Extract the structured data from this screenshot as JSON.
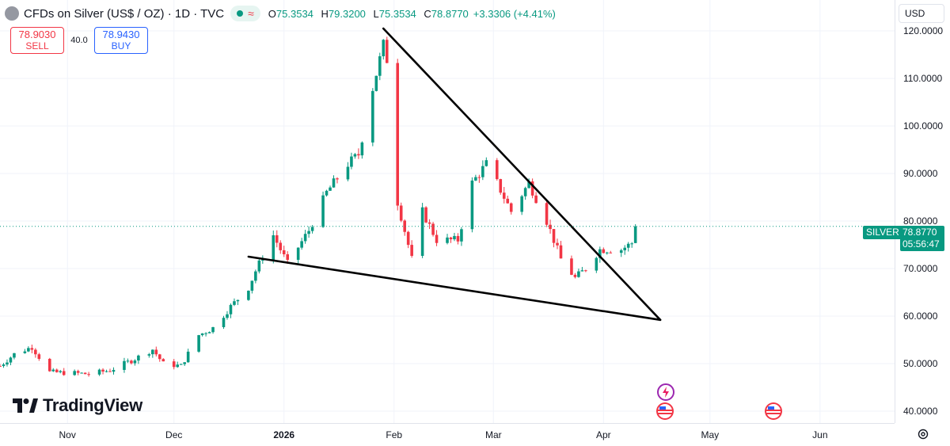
{
  "header": {
    "title": "CFDs on Silver (US$ / OZ) · 1D · TVC",
    "open_label": "O",
    "open": "75.3534",
    "high_label": "H",
    "high": "79.3200",
    "low_label": "L",
    "low": "75.3534",
    "close_label": "C",
    "close": "78.8770",
    "change": "+3.3306 (+4.41%)"
  },
  "trade": {
    "sell_price": "78.9030",
    "sell_label": "SELL",
    "spread": "40.0",
    "buy_price": "78.9430",
    "buy_label": "BUY"
  },
  "currency": "USD",
  "brand": "TradingView",
  "price_label": {
    "symbol": "SILVER",
    "price": "78.8770",
    "countdown": "05:56:47"
  },
  "colors": {
    "up": "#089981",
    "down": "#f23645",
    "grid": "#f0f3fa",
    "trendline": "#000000"
  },
  "icons": [
    "status-dot-icon",
    "wave-icon",
    "tradingview-logo-icon",
    "lightning-event-icon",
    "us-flag-event-icon",
    "settings-icon"
  ],
  "chart_data": {
    "type": "candlestick",
    "title": "CFDs on Silver (US$ / OZ)",
    "y_ticks": [
      "120.0000",
      "110.0000",
      "100.0000",
      "90.0000",
      "80.0000",
      "70.0000",
      "60.0000",
      "50.0000",
      "40.0000"
    ],
    "x_ticks": [
      {
        "label": "Nov",
        "date": "2025-11-01",
        "bold": false
      },
      {
        "label": "Dec",
        "date": "2025-12-01",
        "bold": false
      },
      {
        "label": "2026",
        "date": "2026-01-01",
        "bold": true
      },
      {
        "label": "Feb",
        "date": "2026-02-01",
        "bold": false
      },
      {
        "label": "Mar",
        "date": "2026-03-01",
        "bold": false
      },
      {
        "label": "Apr",
        "date": "2026-04-01",
        "bold": false
      },
      {
        "label": "May",
        "date": "2026-05-01",
        "bold": false
      },
      {
        "label": "Jun",
        "date": "2026-06-01",
        "bold": false
      }
    ],
    "ylim": [
      37.5,
      126.5
    ],
    "xlim": [
      "2025-10-13",
      "2026-06-22"
    ],
    "last_price": 78.877,
    "anchors": [
      [
        "2025-10-13",
        49.5
      ],
      [
        "2025-10-17",
        52.0
      ],
      [
        "2025-10-22",
        53.5
      ],
      [
        "2025-10-27",
        48.2
      ],
      [
        "2025-11-03",
        48.0
      ],
      [
        "2025-11-07",
        47.8
      ],
      [
        "2025-11-13",
        48.6
      ],
      [
        "2025-11-20",
        51.0
      ],
      [
        "2025-11-25",
        53.0
      ],
      [
        "2025-11-28",
        50.0
      ],
      [
        "2025-12-03",
        49.5
      ],
      [
        "2025-12-08",
        56.0
      ],
      [
        "2025-12-12",
        57.5
      ],
      [
        "2025-12-17",
        62.0
      ],
      [
        "2025-12-22",
        66.0
      ],
      [
        "2025-12-24",
        69.5
      ],
      [
        "2025-12-29",
        77.0
      ],
      [
        "2026-01-02",
        71.0
      ],
      [
        "2026-01-08",
        78.0
      ],
      [
        "2026-01-13",
        86.0
      ],
      [
        "2026-01-19",
        92.0
      ],
      [
        "2026-01-22",
        94.0
      ],
      [
        "2026-01-26",
        108.0
      ],
      [
        "2026-01-29",
        117.0
      ],
      [
        "2026-01-30",
        114.0
      ],
      [
        "2026-02-02",
        84.0
      ],
      [
        "2026-02-04",
        78.0
      ],
      [
        "2026-02-06",
        72.0
      ],
      [
        "2026-02-09",
        82.0
      ],
      [
        "2026-02-13",
        76.0
      ],
      [
        "2026-02-19",
        76.0
      ],
      [
        "2026-02-23",
        88.0
      ],
      [
        "2026-02-27",
        92.0
      ],
      [
        "2026-03-02",
        88.0
      ],
      [
        "2026-03-06",
        82.0
      ],
      [
        "2026-03-11",
        88.0
      ],
      [
        "2026-03-16",
        80.0
      ],
      [
        "2026-03-20",
        72.0
      ],
      [
        "2026-03-24",
        68.0
      ],
      [
        "2026-03-27",
        70.0
      ],
      [
        "2026-03-31",
        74.0
      ],
      [
        "2026-04-06",
        74.0
      ],
      [
        "2026-04-09",
        75.35
      ],
      [
        "2026-04-10",
        78.877
      ]
    ],
    "trendlines": [
      {
        "name": "upper",
        "from": [
          "2026-01-29",
          120.5
        ],
        "to": [
          "2026-04-17",
          59.2
        ]
      },
      {
        "name": "lower",
        "from": [
          "2025-12-22",
          72.5
        ],
        "to": [
          "2026-04-17",
          59.2
        ]
      }
    ]
  }
}
